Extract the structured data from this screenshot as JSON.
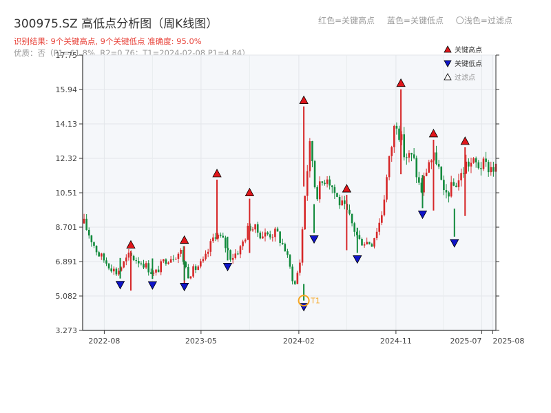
{
  "title": "300975.SZ 高低点分析图（周K线图）",
  "subtitle1": "识别结果: 9个关键高点, 9个关键低点  准确度: 95.0%",
  "subtitle2": "优质：否（P1=61.8%, R2=0.76；T1=2024-02-08 P1=4.84）",
  "top_legend": {
    "red": "红色=关键高点",
    "blue": "蓝色=关键低点",
    "hollow": "〇浅色=过滤点"
  },
  "colors": {
    "up": "#d62728",
    "down": "#118a3c",
    "high_marker": "#e0161b",
    "low_marker": "#0f14c8",
    "highlight": "#f5a623",
    "plot_bg": "#f5f7fa",
    "axis": "#333333"
  },
  "chart_data": {
    "type": "candlestick",
    "period": "weekly",
    "x_tick_labels": [
      "2022-08",
      "2023-05",
      "2024-02",
      "2024-11",
      "2025-07",
      "2025-08"
    ],
    "y_tick_labels": [
      "3.273",
      "5.082",
      "6.891",
      "8.701",
      "10.51",
      "12.32",
      "14.13",
      "15.94",
      "17.75"
    ],
    "ylim": [
      3.273,
      17.75
    ],
    "grid": true,
    "legend": {
      "position": "top-right",
      "entries": [
        {
          "label": "关键高点",
          "marker": "red-up-triangle"
        },
        {
          "label": "关键低点",
          "marker": "blue-down-triangle"
        },
        {
          "label": "过滤点",
          "marker": "hollow-triangle"
        }
      ]
    },
    "highs": [
      {
        "date": "2022-10",
        "value": 7.45
      },
      {
        "date": "2023-03",
        "value": 7.7
      },
      {
        "date": "2023-06",
        "value": 11.2
      },
      {
        "date": "2023-09",
        "value": 10.2
      },
      {
        "date": "2024-02",
        "value": 15.05
      },
      {
        "date": "2024-06",
        "value": 10.4
      },
      {
        "date": "2024-11",
        "value": 15.95
      },
      {
        "date": "2025-02",
        "value": 13.3
      },
      {
        "date": "2025-05",
        "value": 12.9
      }
    ],
    "lows": [
      {
        "date": "2022-09",
        "value": 6.0
      },
      {
        "date": "2022-12",
        "value": 5.98
      },
      {
        "date": "2023-03",
        "value": 5.9
      },
      {
        "date": "2023-07",
        "value": 6.95
      },
      {
        "date": "2024-02",
        "value": 4.84
      },
      {
        "date": "2024-03",
        "value": 8.4
      },
      {
        "date": "2024-07",
        "value": 7.35
      },
      {
        "date": "2025-01",
        "value": 9.7
      },
      {
        "date": "2025-04",
        "value": 8.2
      }
    ],
    "annotation": {
      "label": "T1",
      "date": "2024-02",
      "value": 4.84
    }
  }
}
